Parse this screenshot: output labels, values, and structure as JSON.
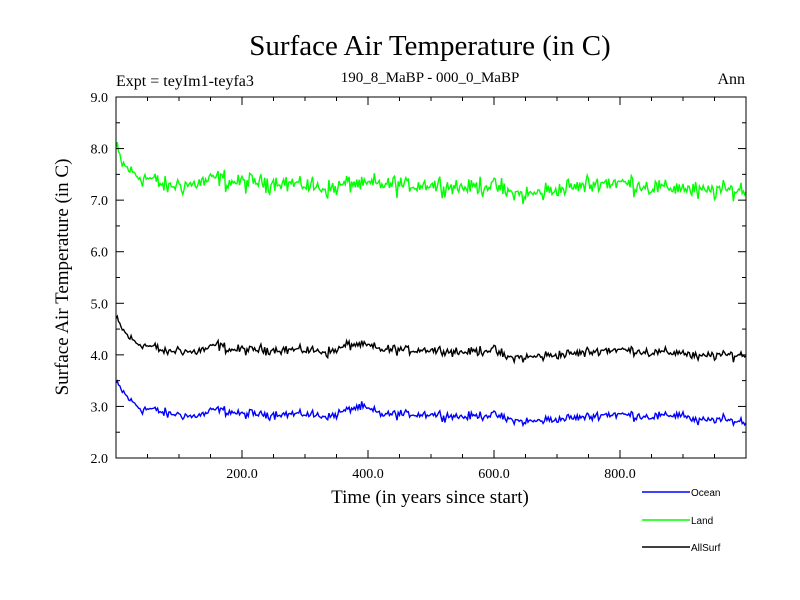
{
  "chart_data": {
    "type": "line",
    "title": "Surface Air Temperature (in C)",
    "subtitle_left": "Expt = teyIm1-teyfa3",
    "subtitle_center": "190_8_MaBP - 000_0_MaBP",
    "subtitle_right": "Ann",
    "xlabel": "Time (in years since start)",
    "ylabel": "Surface Air Temperature (in C)",
    "xlim": [
      0,
      1000
    ],
    "ylim": [
      2.0,
      9.0
    ],
    "xticks": [
      200,
      400,
      600,
      800
    ],
    "xtick_labels": [
      "200.0",
      "400.0",
      "600.0",
      "800.0"
    ],
    "yticks": [
      2,
      3,
      4,
      5,
      6,
      7,
      8,
      9
    ],
    "ytick_labels": [
      "2.0",
      "3.0",
      "4.0",
      "5.0",
      "6.0",
      "7.0",
      "8.0",
      "9.0"
    ],
    "series": [
      {
        "name": "Ocean",
        "color": "#0000ff",
        "x": [
          0,
          10,
          20,
          30,
          40,
          60,
          80,
          100,
          120,
          140,
          160,
          180,
          200,
          250,
          300,
          340,
          370,
          390,
          420,
          450,
          500,
          550,
          600,
          620,
          650,
          700,
          750,
          780,
          800,
          850,
          900,
          920,
          950,
          1000
        ],
        "values": [
          3.45,
          3.3,
          3.15,
          3.05,
          2.95,
          2.95,
          2.85,
          2.85,
          2.8,
          2.85,
          2.95,
          2.9,
          2.85,
          2.85,
          2.85,
          2.8,
          2.95,
          3.0,
          2.85,
          2.85,
          2.85,
          2.8,
          2.85,
          2.75,
          2.7,
          2.75,
          2.8,
          2.85,
          2.85,
          2.8,
          2.85,
          2.7,
          2.75,
          2.7
        ]
      },
      {
        "name": "Land",
        "color": "#00ff00",
        "x": [
          0,
          10,
          20,
          30,
          40,
          60,
          80,
          100,
          120,
          140,
          160,
          180,
          200,
          250,
          300,
          340,
          370,
          390,
          420,
          450,
          500,
          550,
          600,
          620,
          650,
          700,
          750,
          780,
          800,
          850,
          900,
          920,
          950,
          1000
        ],
        "values": [
          8.0,
          7.7,
          7.6,
          7.5,
          7.45,
          7.4,
          7.25,
          7.3,
          7.3,
          7.35,
          7.45,
          7.35,
          7.35,
          7.35,
          7.3,
          7.2,
          7.35,
          7.3,
          7.3,
          7.3,
          7.3,
          7.25,
          7.3,
          7.15,
          7.1,
          7.2,
          7.3,
          7.35,
          7.35,
          7.25,
          7.25,
          7.15,
          7.2,
          7.2
        ]
      },
      {
        "name": "AllSurf",
        "color": "#000000",
        "x": [
          0,
          10,
          20,
          30,
          40,
          60,
          80,
          100,
          120,
          140,
          160,
          180,
          200,
          250,
          300,
          340,
          370,
          390,
          420,
          450,
          500,
          550,
          600,
          620,
          650,
          700,
          750,
          780,
          800,
          850,
          900,
          920,
          950,
          1000
        ],
        "values": [
          4.7,
          4.5,
          4.35,
          4.25,
          4.2,
          4.15,
          4.05,
          4.1,
          4.05,
          4.1,
          4.2,
          4.1,
          4.1,
          4.1,
          4.1,
          4.05,
          4.2,
          4.2,
          4.1,
          4.1,
          4.1,
          4.05,
          4.1,
          3.95,
          3.95,
          4.0,
          4.05,
          4.1,
          4.1,
          4.05,
          4.05,
          3.95,
          4.0,
          4.0
        ]
      }
    ],
    "legend_position": "bottom-right"
  }
}
